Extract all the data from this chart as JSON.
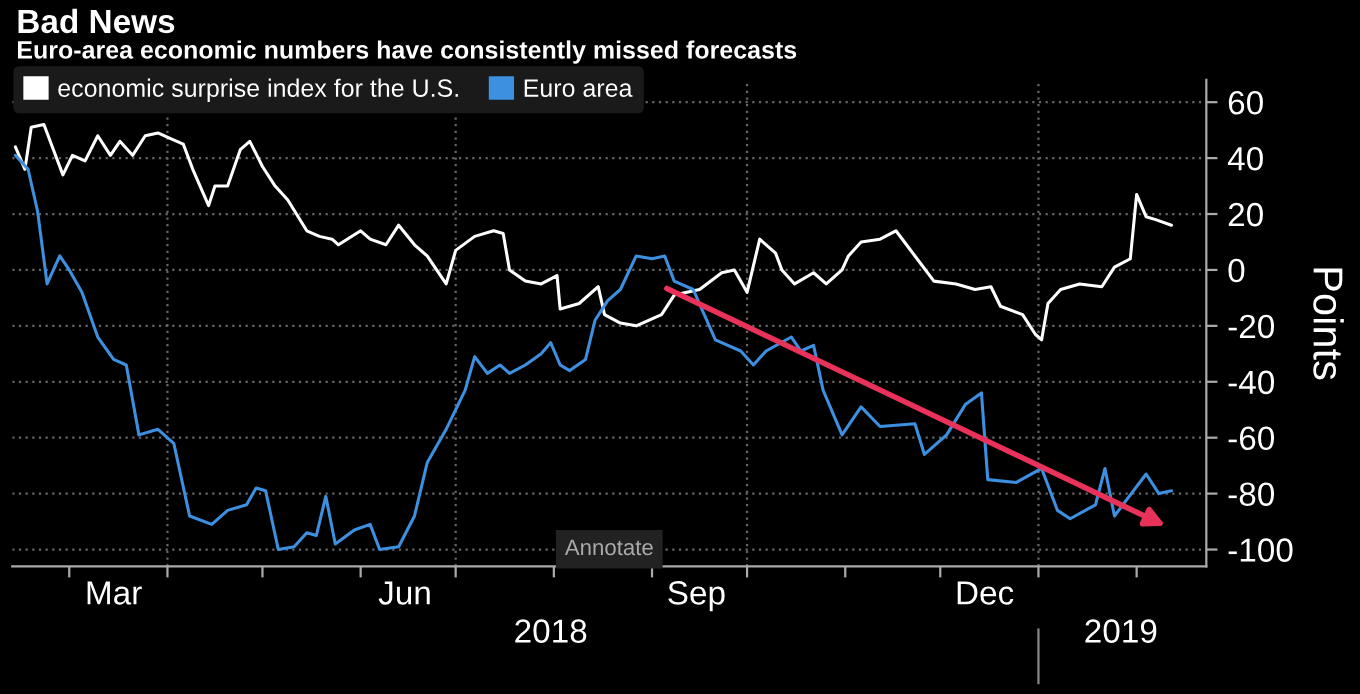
{
  "chart_data": {
    "type": "line",
    "title": "Bad News",
    "subtitle": "Euro-area economic numbers have consistently missed forecasts",
    "ylabel": "Points",
    "xlim": [
      "2018-02-11",
      "2019-02-23"
    ],
    "ylim": [
      -106,
      68
    ],
    "yticks": [
      -100,
      -80,
      -60,
      -40,
      -20,
      0,
      20,
      40,
      60
    ],
    "xticks": [
      {
        "value": "2018-03-01",
        "label": null
      },
      {
        "value": "2018-03-15",
        "label": "Mar"
      },
      {
        "value": "2018-04-01",
        "label": null
      },
      {
        "value": "2018-05-01",
        "label": null
      },
      {
        "value": "2018-06-01",
        "label": null
      },
      {
        "value": "2018-06-15",
        "label": "Jun"
      },
      {
        "value": "2018-07-01",
        "label": null
      },
      {
        "value": "2018-08-01",
        "label": null
      },
      {
        "value": "2018-09-01",
        "label": null
      },
      {
        "value": "2018-09-15",
        "label": "Sep"
      },
      {
        "value": "2018-10-01",
        "label": null
      },
      {
        "value": "2018-11-01",
        "label": null
      },
      {
        "value": "2018-12-01",
        "label": null
      },
      {
        "value": "2018-12-15",
        "label": "Dec"
      },
      {
        "value": "2019-01-01",
        "label": null
      },
      {
        "value": "2019-02-01",
        "label": null
      }
    ],
    "x2lim": [
      "2018-02-11",
      "2019-02-23"
    ],
    "x2ticks": [
      {
        "value": "2018-07-31",
        "label": "2018"
      },
      {
        "value": "2019-01-01",
        "label": null
      },
      {
        "value": "2019-01-27",
        "label": "2019"
      }
    ],
    "grid": true,
    "legend": "top left",
    "line_style": "solid",
    "marker": "none",
    "annotations": [
      "Annotate"
    ],
    "series": [
      {
        "name": "economic surprise index for the U.S.",
        "color": "#ffffff",
        "x": [
          "2018-02-12",
          "2018-02-15",
          "2018-02-17",
          "2018-02-21",
          "2018-02-24",
          "2018-02-27",
          "2018-03-02",
          "2018-03-06",
          "2018-03-10",
          "2018-03-14",
          "2018-03-17",
          "2018-03-21",
          "2018-03-25",
          "2018-03-29",
          "2018-04-02",
          "2018-04-06",
          "2018-04-09",
          "2018-04-14",
          "2018-04-16",
          "2018-04-20",
          "2018-04-24",
          "2018-04-27",
          "2018-05-01",
          "2018-05-05",
          "2018-05-09",
          "2018-05-15",
          "2018-05-19",
          "2018-05-23",
          "2018-05-25",
          "2018-06-01",
          "2018-06-04",
          "2018-06-09",
          "2018-06-13",
          "2018-06-18",
          "2018-06-22",
          "2018-06-28",
          "2018-07-01",
          "2018-07-07",
          "2018-07-13",
          "2018-07-16",
          "2018-07-18",
          "2018-07-23",
          "2018-07-28",
          "2018-08-02",
          "2018-08-03",
          "2018-08-09",
          "2018-08-15",
          "2018-08-17",
          "2018-08-22",
          "2018-08-27",
          "2018-09-04",
          "2018-09-08",
          "2018-09-16",
          "2018-09-23",
          "2018-09-27",
          "2018-10-01",
          "2018-10-05",
          "2018-10-10",
          "2018-10-12",
          "2018-10-16",
          "2018-10-22",
          "2018-10-26",
          "2018-10-31",
          "2018-11-02",
          "2018-11-06",
          "2018-11-12",
          "2018-11-17",
          "2018-11-23",
          "2018-11-29",
          "2018-12-06",
          "2018-12-12",
          "2018-12-17",
          "2018-12-20",
          "2018-12-27",
          "2018-12-31",
          "2019-01-02",
          "2019-01-04",
          "2019-01-08",
          "2019-01-14",
          "2019-01-21",
          "2019-01-25",
          "2019-01-30",
          "2019-02-01",
          "2019-02-04",
          "2019-02-07",
          "2019-02-12"
        ],
        "values": [
          44,
          36,
          51,
          52,
          43,
          34,
          41,
          39,
          48,
          41,
          46,
          41,
          48,
          49,
          47,
          45,
          36,
          23,
          30,
          30,
          43,
          46,
          37,
          30,
          25,
          14,
          12,
          11,
          9,
          14,
          11,
          9,
          16,
          9,
          5,
          -5,
          7,
          12,
          14,
          13,
          0,
          -4,
          -5,
          -2,
          -14,
          -12,
          -6,
          -16,
          -19,
          -20,
          -16,
          -9,
          -7,
          -1,
          0,
          -8,
          11,
          6,
          0,
          -5,
          -1,
          -5,
          0,
          5,
          10,
          11,
          14,
          5,
          -4,
          -5,
          -7,
          -6,
          -13,
          -16,
          -23,
          -25,
          -12,
          -7,
          -5,
          -6,
          1,
          4,
          27,
          19,
          18,
          16
        ]
      },
      {
        "name": "Euro area",
        "color": "#3d8fe0",
        "x": [
          "2018-02-12",
          "2018-02-16",
          "2018-02-19",
          "2018-02-22",
          "2018-02-26",
          "2018-03-01",
          "2018-03-05",
          "2018-03-10",
          "2018-03-15",
          "2018-03-19",
          "2018-03-23",
          "2018-03-29",
          "2018-04-03",
          "2018-04-08",
          "2018-04-15",
          "2018-04-20",
          "2018-04-26",
          "2018-04-29",
          "2018-05-02",
          "2018-05-06",
          "2018-05-11",
          "2018-05-15",
          "2018-05-18",
          "2018-05-21",
          "2018-05-24",
          "2018-05-30",
          "2018-06-04",
          "2018-06-07",
          "2018-06-13",
          "2018-06-18",
          "2018-06-22",
          "2018-06-28",
          "2018-07-04",
          "2018-07-07",
          "2018-07-11",
          "2018-07-15",
          "2018-07-18",
          "2018-07-23",
          "2018-07-28",
          "2018-07-31",
          "2018-08-03",
          "2018-08-06",
          "2018-08-11",
          "2018-08-14",
          "2018-08-18",
          "2018-08-22",
          "2018-08-27",
          "2018-09-01",
          "2018-09-05",
          "2018-09-08",
          "2018-09-14",
          "2018-09-21",
          "2018-09-29",
          "2018-10-03",
          "2018-10-07",
          "2018-10-15",
          "2018-10-18",
          "2018-10-22",
          "2018-10-25",
          "2018-10-31",
          "2018-11-06",
          "2018-11-12",
          "2018-11-23",
          "2018-11-26",
          "2018-12-03",
          "2018-12-09",
          "2018-12-14",
          "2018-12-16",
          "2018-12-25",
          "2019-01-02",
          "2019-01-07",
          "2019-01-11",
          "2019-01-19",
          "2019-01-22",
          "2019-01-25",
          "2019-01-29",
          "2019-02-04",
          "2019-02-08",
          "2019-02-12"
        ],
        "values": [
          41,
          36,
          21,
          -5,
          5,
          0,
          -8,
          -24,
          -32,
          -34,
          -59,
          -57,
          -62,
          -88,
          -91,
          -86,
          -84,
          -78,
          -79,
          -100,
          -99,
          -94,
          -95,
          -81,
          -98,
          -93,
          -91,
          -100,
          -99,
          -88,
          -69,
          -57,
          -43,
          -31,
          -37,
          -34,
          -37,
          -34,
          -30,
          -26,
          -34,
          -36,
          -32,
          -18,
          -11,
          -7,
          5,
          4,
          5,
          -4,
          -7,
          -25,
          -29,
          -34,
          -29,
          -24,
          -29,
          -27,
          -43,
          -59,
          -49,
          -56,
          -55,
          -66,
          -59,
          -48,
          -44,
          -75,
          -76,
          -71,
          -86,
          -89,
          -84,
          -71,
          -88,
          -82,
          -73,
          -80,
          -79
        ]
      }
    ]
  }
}
